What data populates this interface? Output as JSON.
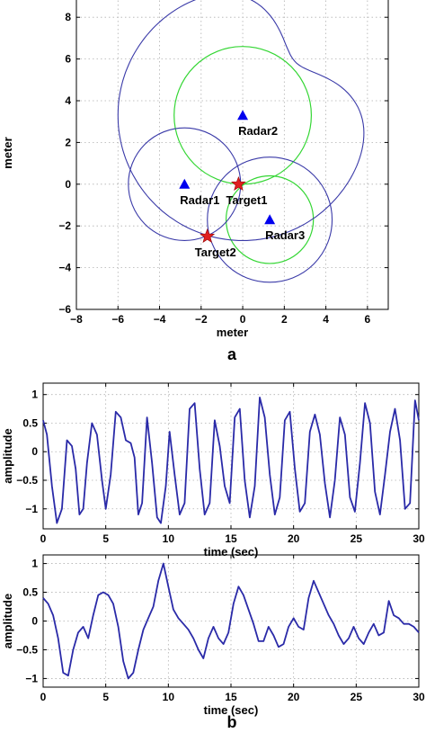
{
  "chart_data": [
    {
      "type": "scatter",
      "panel_label": "a",
      "xlabel": "meter",
      "ylabel": "meter",
      "xlim": [
        -8,
        7
      ],
      "ylim": [
        -6,
        9
      ],
      "xticks": [
        -8,
        -6,
        -4,
        -2,
        0,
        2,
        4,
        6
      ],
      "yticks": [
        -6,
        -4,
        -2,
        0,
        2,
        4,
        6,
        8
      ],
      "grid": true,
      "colors": {
        "blue": "#3a3aa8",
        "green": "#33d633",
        "radar": "#0000ee",
        "target": "#e02020"
      },
      "radars": [
        {
          "label": "Radar1",
          "x": -2.8,
          "y": 0.0
        },
        {
          "label": "Radar2",
          "x": 0.0,
          "y": 3.3
        },
        {
          "label": "Radar3",
          "x": 1.3,
          "y": -1.7
        }
      ],
      "targets": [
        {
          "label": "Target1",
          "x": -0.2,
          "y": 0.0
        },
        {
          "label": "Target2",
          "x": -1.7,
          "y": -2.5
        }
      ],
      "green_circles": [
        {
          "cx": 0.0,
          "cy": 3.3,
          "r": 3.3
        },
        {
          "cx": 1.3,
          "cy": -1.7,
          "r": 2.1
        }
      ],
      "blue_circles": [
        {
          "cx": -2.8,
          "cy": 0.0,
          "r": 2.7
        },
        {
          "cx": 1.3,
          "cy": -1.7,
          "r": 3.0
        }
      ],
      "blue_big_curve": {
        "cx": 0.0,
        "cy": 3.3,
        "r_outer": 6.0,
        "r_inner": 3.6
      }
    },
    {
      "type": "line",
      "xlabel": "time (sec)",
      "ylabel": "amplitude",
      "xlim": [
        0,
        30
      ],
      "ylim": [
        -1.35,
        1.2
      ],
      "xticks": [
        0,
        5,
        10,
        15,
        20,
        25,
        30
      ],
      "yticks": [
        -1,
        -0.5,
        0,
        0.5,
        1
      ],
      "grid": true,
      "color": "#2a2aa8",
      "x": [
        0,
        0.3,
        0.7,
        1.1,
        1.5,
        1.9,
        2.3,
        2.6,
        2.9,
        3.2,
        3.5,
        3.9,
        4.3,
        4.7,
        5.0,
        5.4,
        5.8,
        6.2,
        6.6,
        7.0,
        7.3,
        7.6,
        7.9,
        8.3,
        8.7,
        9.1,
        9.4,
        9.8,
        10.1,
        10.5,
        10.9,
        11.3,
        11.7,
        12.1,
        12.5,
        12.9,
        13.3,
        13.7,
        14.1,
        14.5,
        14.9,
        15.3,
        15.7,
        16.1,
        16.5,
        16.9,
        17.3,
        17.7,
        18.1,
        18.5,
        18.9,
        19.3,
        19.7,
        20.1,
        20.5,
        20.9,
        21.3,
        21.7,
        22.1,
        22.5,
        22.9,
        23.3,
        23.7,
        24.1,
        24.5,
        24.9,
        25.3,
        25.7,
        26.1,
        26.5,
        26.9,
        27.3,
        27.7,
        28.1,
        28.5,
        28.9,
        29.3,
        29.7,
        30.0
      ],
      "y": [
        0.55,
        0.3,
        -0.6,
        -1.25,
        -1.0,
        0.2,
        0.1,
        -0.3,
        -1.1,
        -1.0,
        -0.2,
        0.5,
        0.3,
        -0.5,
        -1.0,
        -0.4,
        0.7,
        0.6,
        0.2,
        0.15,
        -0.1,
        -1.1,
        -0.9,
        0.6,
        -0.2,
        -1.15,
        -1.25,
        -0.6,
        0.35,
        -0.4,
        -1.1,
        -0.9,
        0.75,
        0.85,
        -0.3,
        -1.1,
        -0.9,
        0.55,
        0.1,
        -0.6,
        -0.9,
        0.6,
        0.75,
        -0.5,
        -1.15,
        -0.6,
        0.95,
        0.6,
        -0.4,
        -1.1,
        -0.8,
        0.55,
        0.7,
        -0.3,
        -1.05,
        -0.9,
        0.35,
        0.65,
        0.3,
        -0.55,
        -1.15,
        -0.5,
        0.6,
        0.3,
        -0.8,
        -1.05,
        -0.2,
        0.85,
        0.5,
        -0.7,
        -1.1,
        -0.4,
        0.35,
        0.75,
        0.2,
        -1.0,
        -0.9,
        0.9,
        0.55
      ]
    },
    {
      "type": "line",
      "panel_label": "b",
      "xlabel": "time (sec)",
      "ylabel": "amplitude",
      "xlim": [
        0,
        30
      ],
      "ylim": [
        -1.15,
        1.15
      ],
      "xticks": [
        0,
        5,
        10,
        15,
        20,
        25,
        30
      ],
      "yticks": [
        -1,
        -0.5,
        0,
        0.5,
        1
      ],
      "grid": true,
      "color": "#2a2aa8",
      "x": [
        0,
        0.4,
        0.8,
        1.2,
        1.6,
        2.0,
        2.4,
        2.8,
        3.2,
        3.6,
        4.0,
        4.4,
        4.8,
        5.2,
        5.6,
        6.0,
        6.4,
        6.8,
        7.2,
        7.6,
        8.0,
        8.4,
        8.8,
        9.2,
        9.6,
        10.0,
        10.4,
        10.8,
        11.2,
        11.6,
        12.0,
        12.4,
        12.8,
        13.2,
        13.6,
        14.0,
        14.4,
        14.8,
        15.2,
        15.6,
        16.0,
        16.4,
        16.8,
        17.2,
        17.6,
        18.0,
        18.4,
        18.8,
        19.2,
        19.6,
        20.0,
        20.4,
        20.8,
        21.2,
        21.6,
        22.0,
        22.4,
        22.8,
        23.2,
        23.6,
        24.0,
        24.4,
        24.8,
        25.2,
        25.6,
        26.0,
        26.4,
        26.8,
        27.2,
        27.6,
        28.0,
        28.4,
        28.8,
        29.2,
        29.6,
        30.0
      ],
      "y": [
        0.4,
        0.3,
        0.1,
        -0.3,
        -0.9,
        -0.95,
        -0.5,
        -0.2,
        -0.1,
        -0.3,
        0.1,
        0.45,
        0.5,
        0.45,
        0.3,
        -0.1,
        -0.7,
        -1.0,
        -0.9,
        -0.5,
        -0.15,
        0.05,
        0.25,
        0.7,
        1.0,
        0.6,
        0.2,
        0.05,
        -0.05,
        -0.15,
        -0.3,
        -0.5,
        -0.65,
        -0.3,
        -0.1,
        -0.3,
        -0.4,
        -0.2,
        0.3,
        0.6,
        0.45,
        0.2,
        -0.05,
        -0.35,
        -0.35,
        -0.1,
        -0.25,
        -0.45,
        -0.4,
        -0.1,
        0.05,
        -0.1,
        -0.15,
        0.4,
        0.7,
        0.5,
        0.3,
        0.1,
        -0.05,
        -0.25,
        -0.4,
        -0.3,
        -0.1,
        -0.3,
        -0.4,
        -0.2,
        -0.05,
        -0.25,
        -0.2,
        0.35,
        0.1,
        0.05,
        -0.05,
        -0.05,
        -0.1,
        -0.2
      ]
    }
  ]
}
